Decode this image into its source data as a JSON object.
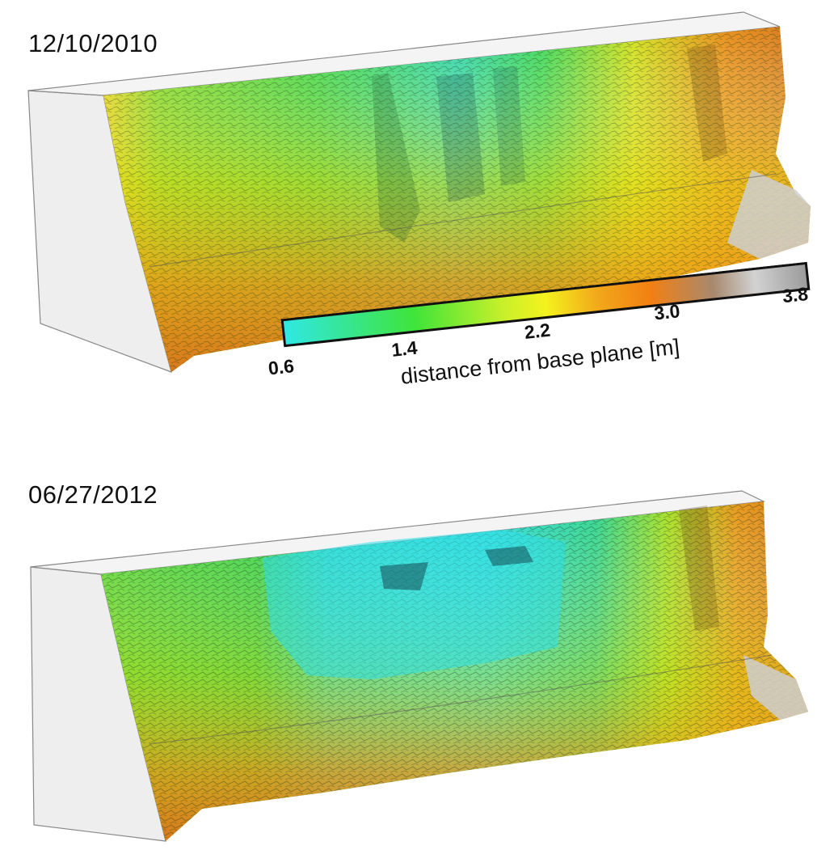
{
  "figure": {
    "panels": [
      {
        "date": "12/10/2010"
      },
      {
        "date": "06/27/2012"
      }
    ],
    "colorbar": {
      "label": "distance from base plane [m]",
      "ticks": [
        "0.6",
        "1.4",
        "2.2",
        "3.0",
        "3.8"
      ],
      "range": [
        0.6,
        3.8
      ],
      "colors": [
        "#2fe8e4",
        "#3fe43a",
        "#f4f21e",
        "#f28012",
        "#a7896e",
        "#d2d2d2",
        "#9a9a9a"
      ]
    }
  }
}
